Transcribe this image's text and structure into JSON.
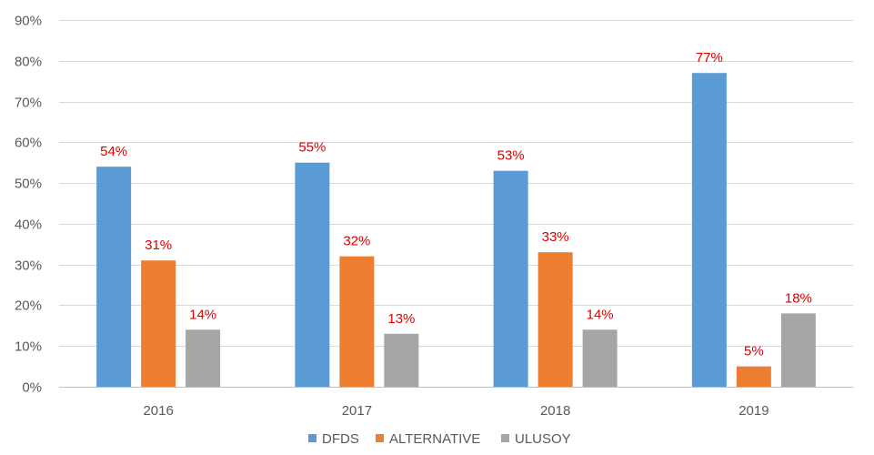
{
  "chart_data": {
    "type": "bar",
    "title": "",
    "xlabel": "",
    "ylabel": "",
    "categories": [
      "2016",
      "2017",
      "2018",
      "2019"
    ],
    "series": [
      {
        "name": "DFDS",
        "color": "#5b9bd5",
        "values": [
          54,
          55,
          53,
          77
        ],
        "labels": [
          "54%",
          "55%",
          "53%",
          "77%"
        ]
      },
      {
        "name": "ALTERNATIVE",
        "color": "#ed7d31",
        "values": [
          31,
          32,
          33,
          5
        ],
        "labels": [
          "31%",
          "32%",
          "33%",
          "5%"
        ]
      },
      {
        "name": "ULUSOY",
        "color": "#a5a5a5",
        "values": [
          14,
          13,
          14,
          18
        ],
        "labels": [
          "14%",
          "13%",
          "14%",
          "18%"
        ]
      }
    ],
    "ylim": [
      0,
      90
    ],
    "yticks": [
      0,
      10,
      20,
      30,
      40,
      50,
      60,
      70,
      80,
      90
    ],
    "ytick_labels": [
      "0%",
      "10%",
      "20%",
      "30%",
      "40%",
      "50%",
      "60%",
      "70%",
      "80%",
      "90%"
    ],
    "grid": true,
    "legend": "bottom",
    "label_color": "#e00000"
  }
}
